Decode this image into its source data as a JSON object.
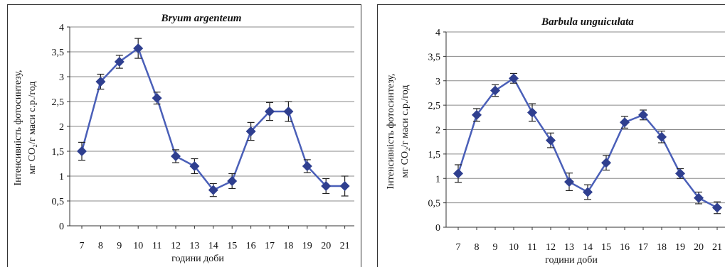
{
  "chart_data": [
    {
      "type": "line",
      "title": "Bryum argenteum",
      "xlabel": "години доби",
      "ylabel_line1": "Інтенсивність фотосинтезу,",
      "ylabel_line2": "мг CO₂/г маси с.р./год",
      "ylim": [
        0,
        4
      ],
      "yticks": [
        "0",
        "0,5",
        "1",
        "1,5",
        "2",
        "2,5",
        "3",
        "3,5",
        "4"
      ],
      "x": [
        7,
        8,
        9,
        10,
        11,
        12,
        13,
        14,
        15,
        16,
        17,
        18,
        19,
        20,
        21
      ],
      "values": [
        1.5,
        2.9,
        3.3,
        3.57,
        2.57,
        1.4,
        1.2,
        0.72,
        0.9,
        1.9,
        2.3,
        2.3,
        1.2,
        0.8,
        0.8
      ],
      "errors": [
        0.18,
        0.15,
        0.13,
        0.2,
        0.12,
        0.13,
        0.15,
        0.13,
        0.15,
        0.18,
        0.18,
        0.2,
        0.13,
        0.15,
        0.2
      ],
      "grid": true,
      "color": "#2f3f8f"
    },
    {
      "type": "line",
      "title": "Barbula unguiculata",
      "xlabel": "години доби",
      "ylabel_line1": "Інтенсивність фотосинтезу,",
      "ylabel_line2": "мг CO₂/г маси с.р./год",
      "ylim": [
        0,
        4
      ],
      "yticks": [
        "0",
        "0,5",
        "1",
        "1,5",
        "2",
        "2,5",
        "3",
        "3,5",
        "4"
      ],
      "x": [
        7,
        8,
        9,
        10,
        11,
        12,
        13,
        14,
        15,
        16,
        17,
        18,
        19,
        20,
        21
      ],
      "values": [
        1.1,
        2.3,
        2.8,
        3.05,
        2.35,
        1.78,
        0.93,
        0.72,
        1.32,
        2.15,
        2.3,
        1.85,
        1.1,
        0.6,
        0.4
      ],
      "errors": [
        0.18,
        0.13,
        0.12,
        0.1,
        0.18,
        0.15,
        0.18,
        0.15,
        0.15,
        0.12,
        0.1,
        0.12,
        0.1,
        0.12,
        0.12
      ],
      "grid": true,
      "color": "#2f3f8f"
    }
  ]
}
